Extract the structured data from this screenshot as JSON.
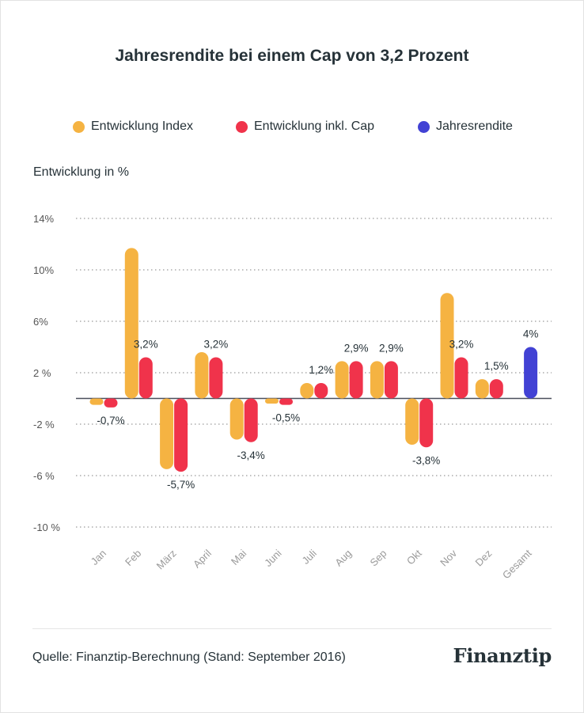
{
  "title": "Jahresrendite bei einem Cap von 3,2 Prozent",
  "legend": [
    {
      "label": "Entwicklung Index",
      "color": "#F5B342"
    },
    {
      "label": "Entwicklung inkl. Cap",
      "color": "#F0334B"
    },
    {
      "label": "Jahresrendite",
      "color": "#4242D4"
    }
  ],
  "source": "Quelle: Finanztip-Berechnung (Stand: September 2016)",
  "brand": "Finanztip",
  "chart_data": {
    "type": "bar",
    "title": "Jahresrendite bei einem Cap von 3,2 Prozent",
    "ylabel": "Entwicklung in %",
    "ylim": [
      -10,
      14
    ],
    "yticks": [
      14,
      10,
      6,
      2,
      -2,
      -6,
      -10
    ],
    "ytick_labels": [
      "14%",
      "10%",
      "6%",
      "2 %",
      "-2 %",
      "-6 %",
      "-10 %"
    ],
    "categories": [
      "Jan",
      "Feb",
      "März",
      "April",
      "Mai",
      "Juni",
      "Juli",
      "Aug",
      "Sep",
      "Okt",
      "Nov",
      "Dez",
      "Gesamt"
    ],
    "series": [
      {
        "name": "Entwicklung Index",
        "values": [
          -0.5,
          11.7,
          -5.5,
          3.6,
          -3.2,
          -0.4,
          1.2,
          2.9,
          2.9,
          -3.6,
          8.2,
          1.5,
          null
        ]
      },
      {
        "name": "Entwicklung inkl. Cap",
        "values": [
          -0.7,
          3.2,
          -5.7,
          3.2,
          -3.4,
          -0.5,
          1.2,
          2.9,
          2.9,
          -3.8,
          3.2,
          1.5,
          null
        ]
      },
      {
        "name": "Jahresrendite",
        "values": [
          null,
          null,
          null,
          null,
          null,
          null,
          null,
          null,
          null,
          null,
          null,
          null,
          4
        ]
      }
    ],
    "data_labels": [
      "-0,7%",
      "3,2%",
      "-5,7%",
      "3,2%",
      "-3,4%",
      "-0,5%",
      "1,2%",
      "2,9%",
      "2,9%",
      "-3,8%",
      "3,2%",
      "1,5%",
      "4%"
    ],
    "grid": true,
    "legend_position": "top"
  }
}
